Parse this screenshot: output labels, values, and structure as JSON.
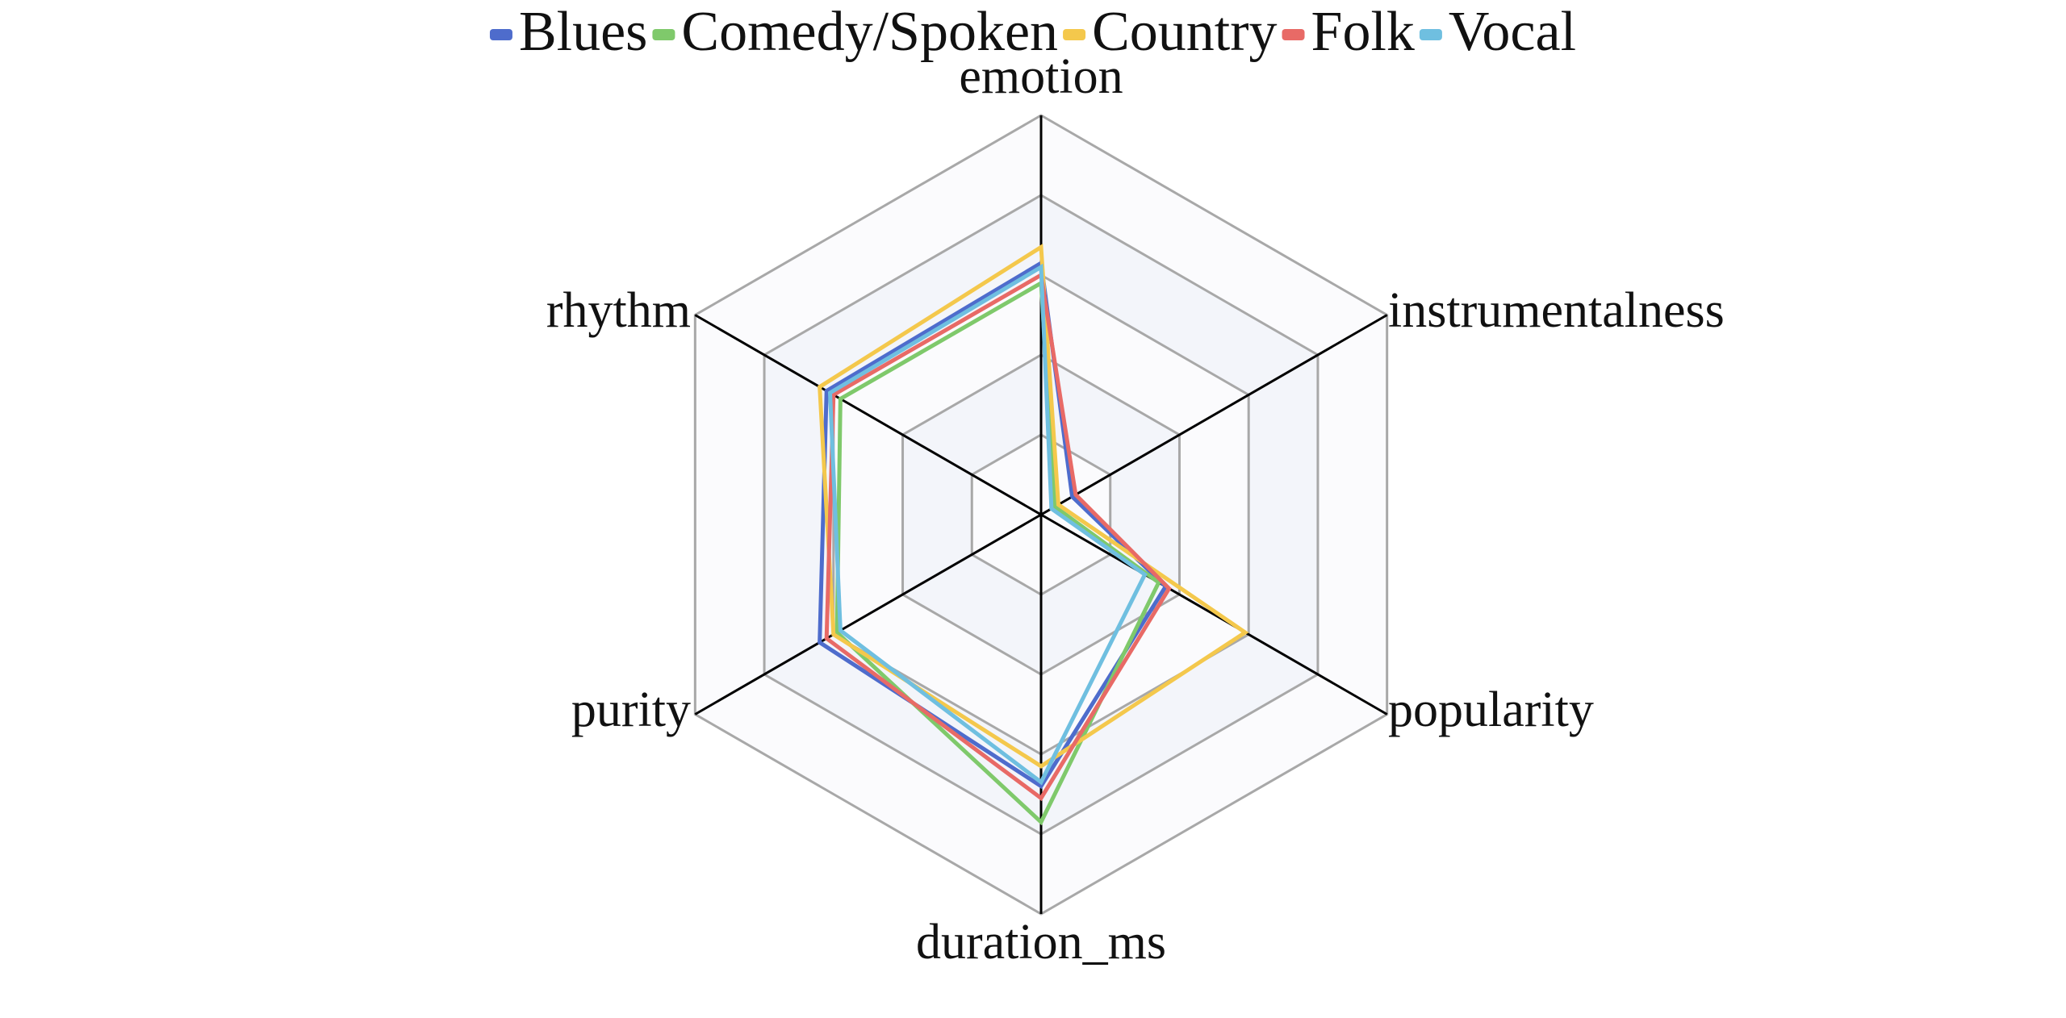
{
  "chart_data": {
    "type": "radar",
    "axes": [
      "emotion",
      "instrumentalness",
      "popularity",
      "duration_ms",
      "purity",
      "rhythm"
    ],
    "rlim": [
      0,
      1
    ],
    "ring_levels": [
      0.2,
      0.4,
      0.6,
      0.8,
      1.0
    ],
    "grid": true,
    "legend_position": "top",
    "series": [
      {
        "name": "Blues",
        "color": "#4e6ccc",
        "values": [
          0.63,
          0.09,
          0.36,
          0.68,
          0.64,
          0.62
        ]
      },
      {
        "name": "Comedy/Spoken",
        "color": "#7fc96b",
        "values": [
          0.58,
          0.04,
          0.34,
          0.77,
          0.59,
          0.58
        ]
      },
      {
        "name": "Country",
        "color": "#f4c84c",
        "values": [
          0.67,
          0.05,
          0.59,
          0.63,
          0.6,
          0.64
        ]
      },
      {
        "name": "Folk",
        "color": "#e86a66",
        "values": [
          0.6,
          0.1,
          0.37,
          0.71,
          0.62,
          0.6
        ]
      },
      {
        "name": "Vocal",
        "color": "#6fbfe0",
        "values": [
          0.62,
          0.03,
          0.3,
          0.67,
          0.58,
          0.61
        ]
      }
    ]
  }
}
